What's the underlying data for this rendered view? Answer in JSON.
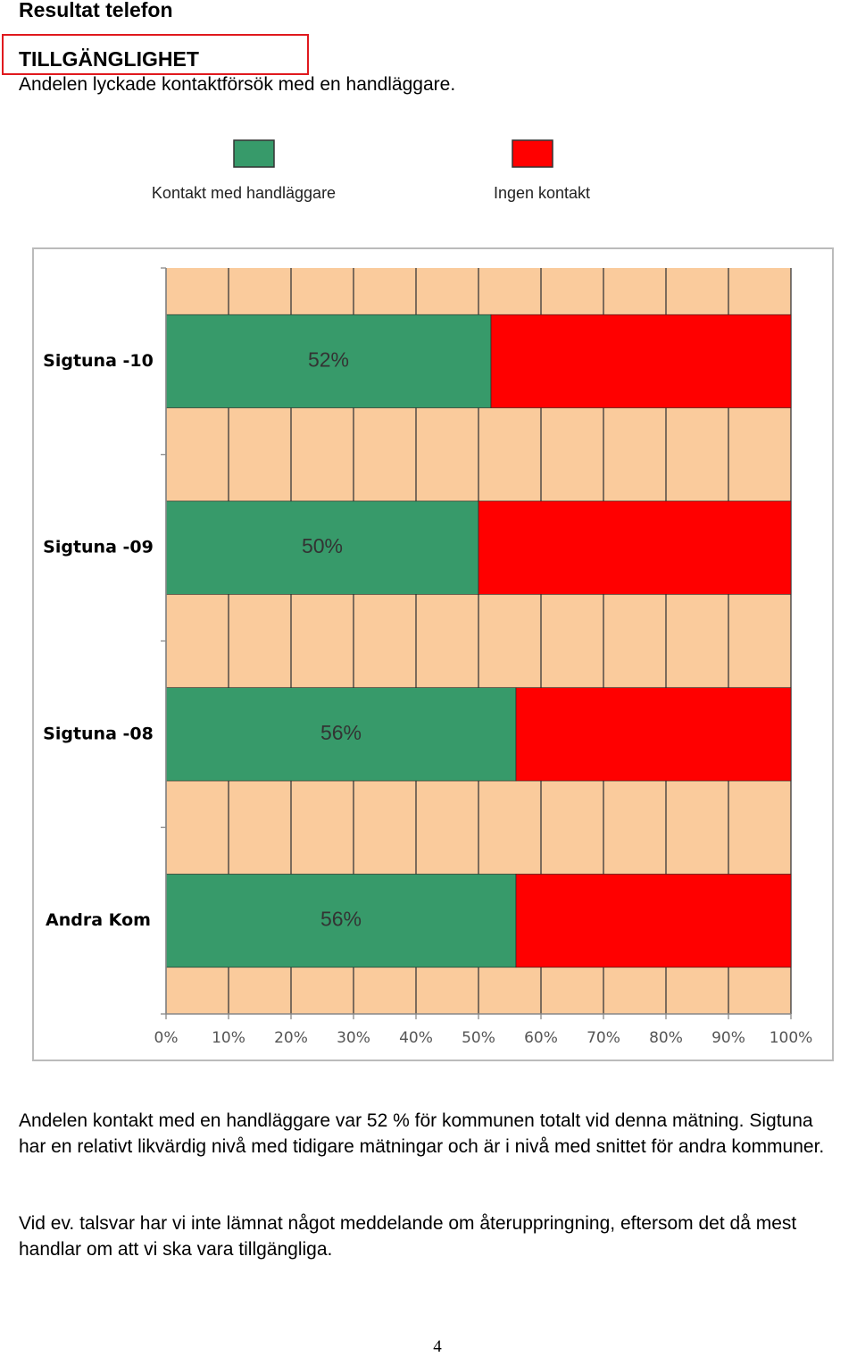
{
  "header": {
    "title": "Resultat telefon",
    "section": "TILLGÄNGLIGHET",
    "subtitle": "Andelen lyckade kontaktförsök med en handläggare."
  },
  "chart_data": {
    "type": "stacked-bar-horizontal",
    "categories": [
      "Sigtuna -10",
      "Sigtuna -09",
      "Sigtuna -08",
      "Andra Kom"
    ],
    "series": [
      {
        "name": "Kontakt med handläggare",
        "color": "#379a6a",
        "values": [
          52,
          50,
          56,
          56
        ],
        "value_labels": [
          "52%",
          "50%",
          "56%",
          "56%"
        ]
      },
      {
        "name": "Ingen kontakt",
        "color": "#ff0000",
        "values": [
          48,
          50,
          44,
          44
        ]
      }
    ],
    "xlim": [
      0,
      100
    ],
    "xticks": [
      {
        "value": 0,
        "label": "0%"
      },
      {
        "value": 10,
        "label": "10%"
      },
      {
        "value": 20,
        "label": "20%"
      },
      {
        "value": 30,
        "label": "30%"
      },
      {
        "value": 40,
        "label": "40%"
      },
      {
        "value": 50,
        "label": "50%"
      },
      {
        "value": 60,
        "label": "60%"
      },
      {
        "value": 70,
        "label": "70%"
      },
      {
        "value": 80,
        "label": "80%"
      },
      {
        "value": 90,
        "label": "90%"
      },
      {
        "value": 100,
        "label": "100%"
      }
    ],
    "grid": true,
    "background": "#facb9c",
    "legend": "top"
  },
  "body": {
    "paragraphs": [
      "Andelen kontakt med en handläggare var 52 % för kommunen totalt vid denna mätning. Sigtuna har en relativt likvärdig nivå med tidigare mätningar och är i nivå med snittet för andra kommuner.",
      "Vid ev. talsvar har vi inte lämnat något meddelande om återuppringning, eftersom det då mest handlar om att vi ska vara tillgängliga."
    ]
  },
  "footer": {
    "page": "4"
  }
}
